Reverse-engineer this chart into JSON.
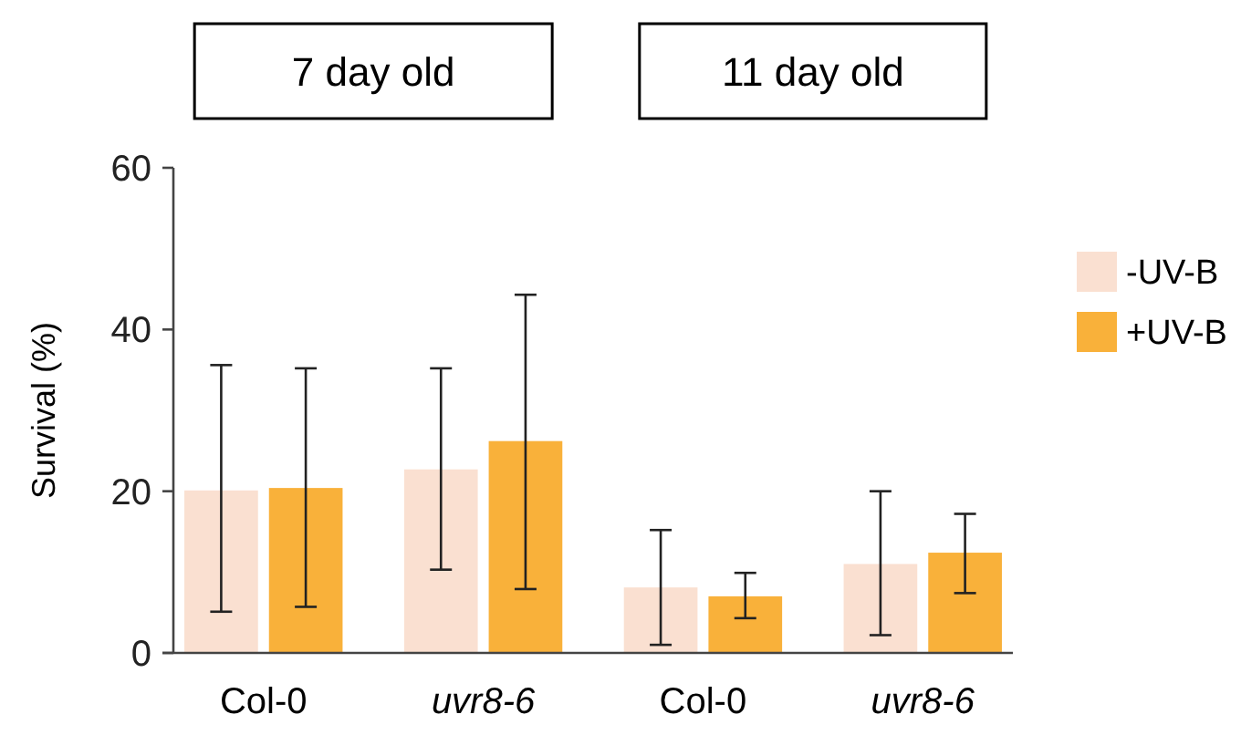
{
  "chart_data": {
    "type": "bar",
    "ylabel": "Survival (%)",
    "categories": [
      "Col-0",
      "uvr8-6",
      "Col-0",
      "uvr8-6"
    ],
    "annotations": [
      "7 day old",
      "11 day old"
    ],
    "series": [
      {
        "name": "-UV-B",
        "color": "#fae0d1",
        "values": [
          20.1,
          22.7,
          8.1,
          11.0
        ],
        "errors": [
          [
            5.1,
            35.6
          ],
          [
            10.3,
            35.2
          ],
          [
            1.0,
            15.2
          ],
          [
            2.2,
            20.0
          ]
        ]
      },
      {
        "name": "+UV-B",
        "color": "#f9b13a",
        "values": [
          20.4,
          26.2,
          7.0,
          12.4
        ],
        "errors": [
          [
            5.7,
            35.2
          ],
          [
            7.9,
            44.3
          ],
          [
            4.3,
            9.9
          ],
          [
            7.4,
            17.2
          ]
        ]
      }
    ],
    "ylim": [
      0,
      60
    ],
    "yticks": [
      0,
      20,
      40,
      60
    ],
    "grid": false,
    "legend": "right"
  }
}
